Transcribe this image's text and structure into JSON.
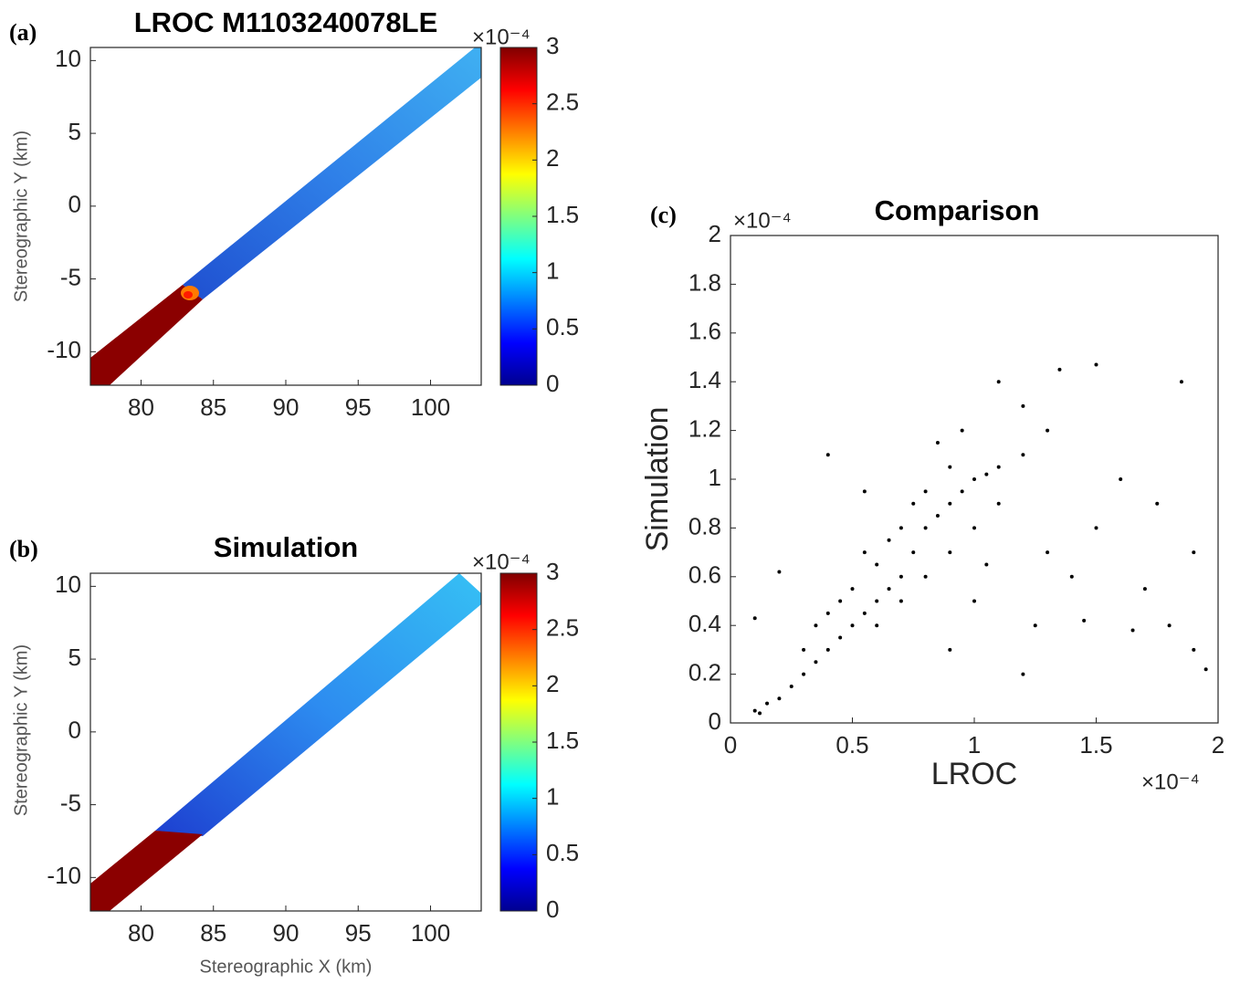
{
  "chart_data": [
    {
      "type": "image",
      "panel_label": "(a)",
      "title": "LROC M1103240078LE",
      "ylabel": "Stereographic Y (km)",
      "xlim": [
        76.5,
        103.5
      ],
      "xticks": [
        80,
        85,
        90,
        95,
        100
      ],
      "ylim": [
        -12.3,
        10.9
      ],
      "yticks": [
        -10,
        -5,
        0,
        5,
        10
      ],
      "clim": [
        0,
        3
      ],
      "cticks": [
        0,
        0.5,
        1,
        1.5,
        2,
        2.5,
        3
      ],
      "colorbar_exponent": "×10⁻⁴"
    },
    {
      "type": "image",
      "panel_label": "(b)",
      "title": "Simulation",
      "ylabel": "Stereographic Y (km)",
      "xlabel": "Stereographic X (km)",
      "xlim": [
        76.5,
        103.5
      ],
      "xticks": [
        80,
        85,
        90,
        95,
        100
      ],
      "ylim": [
        -12.3,
        10.9
      ],
      "yticks": [
        -10,
        -5,
        0,
        5,
        10
      ],
      "clim": [
        0,
        3
      ],
      "cticks": [
        0,
        0.5,
        1,
        1.5,
        2,
        2.5,
        3
      ],
      "colorbar_exponent": "×10⁻⁴"
    },
    {
      "type": "scatter",
      "panel_label": "(c)",
      "title": "Comparison",
      "xlabel": "LROC",
      "ylabel": "Simulation",
      "x_exponent": "×10⁻⁴",
      "y_exponent": "×10⁻⁴",
      "color": "#000000",
      "xlim": [
        0,
        2
      ],
      "xticks": [
        0,
        0.5,
        1,
        1.5,
        2
      ],
      "ylim": [
        0,
        2
      ],
      "yticks": [
        0,
        0.2,
        0.4,
        0.6,
        0.8,
        1,
        1.2,
        1.4,
        1.6,
        1.8,
        2
      ],
      "x": [
        0.1,
        0.15,
        0.2,
        0.12,
        0.25,
        0.3,
        0.35,
        0.4,
        0.45,
        0.5,
        0.55,
        0.6,
        0.65,
        0.7,
        0.75,
        0.8,
        0.85,
        0.9,
        0.95,
        1.0,
        1.05,
        1.1,
        0.4,
        0.5,
        0.6,
        0.55,
        0.7,
        0.8,
        0.9,
        0.75,
        0.65,
        0.45,
        0.35,
        0.3,
        0.6,
        0.7,
        0.8,
        0.9,
        1.0,
        1.1,
        1.2,
        1.3,
        1.2,
        1.35,
        1.5,
        1.1,
        1.25,
        1.4,
        1.5,
        1.6,
        1.7,
        1.8,
        1.9,
        1.95,
        1.85,
        1.75,
        1.9,
        1.3,
        1.0,
        0.9,
        0.2,
        0.1,
        0.4,
        0.55,
        1.2,
        1.45,
        1.65,
        0.85,
        0.95,
        1.05
      ],
      "y": [
        0.05,
        0.08,
        0.1,
        0.04,
        0.15,
        0.2,
        0.25,
        0.3,
        0.35,
        0.4,
        0.45,
        0.5,
        0.55,
        0.6,
        0.7,
        0.8,
        0.85,
        0.9,
        0.95,
        1.0,
        1.02,
        1.05,
        0.45,
        0.55,
        0.65,
        0.7,
        0.8,
        0.95,
        1.05,
        0.9,
        0.75,
        0.5,
        0.4,
        0.3,
        0.4,
        0.5,
        0.6,
        0.7,
        0.8,
        0.9,
        1.1,
        1.2,
        1.3,
        1.45,
        1.47,
        1.4,
        0.4,
        0.6,
        0.8,
        1.0,
        0.55,
        0.4,
        0.3,
        0.22,
        1.4,
        0.9,
        0.7,
        0.7,
        0.5,
        0.3,
        0.62,
        0.43,
        1.1,
        0.95,
        0.2,
        0.42,
        0.38,
        1.15,
        1.2,
        0.65
      ]
    }
  ]
}
